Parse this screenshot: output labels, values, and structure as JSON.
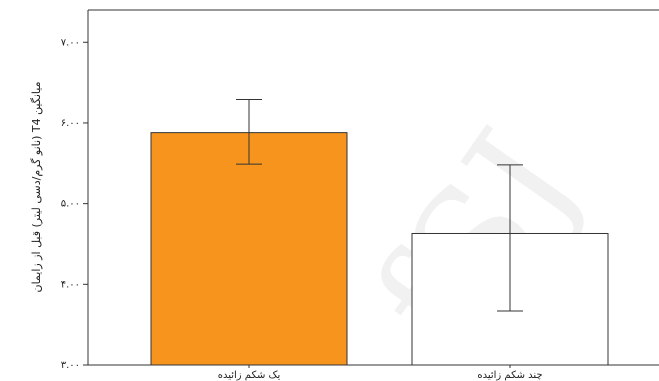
{
  "chart_data": {
    "type": "bar",
    "title": "",
    "xlabel": "",
    "ylabel": "میانگین T4 (نانو گرم/دسی لیتر) قبل از زایمان",
    "categories": [
      "یک شکم زائیده",
      "چند شکم زائیده"
    ],
    "values": [
      5.88,
      4.63
    ],
    "error_bars": [
      {
        "low": 5.49,
        "high": 6.29
      },
      {
        "low": 3.67,
        "high": 5.48
      }
    ],
    "ylim": [
      3.0,
      7.4
    ],
    "yticks": [
      3.0,
      4.0,
      5.0,
      6.0,
      7.0
    ],
    "ytick_labels": [
      "۳.۰۰",
      "۴.۰۰",
      "۵.۰۰",
      "۶.۰۰",
      "۷.۰۰"
    ],
    "colors": [
      "#f7941d",
      "#ffffff"
    ],
    "grid": false,
    "legend": "none"
  },
  "watermark": "fSJ"
}
